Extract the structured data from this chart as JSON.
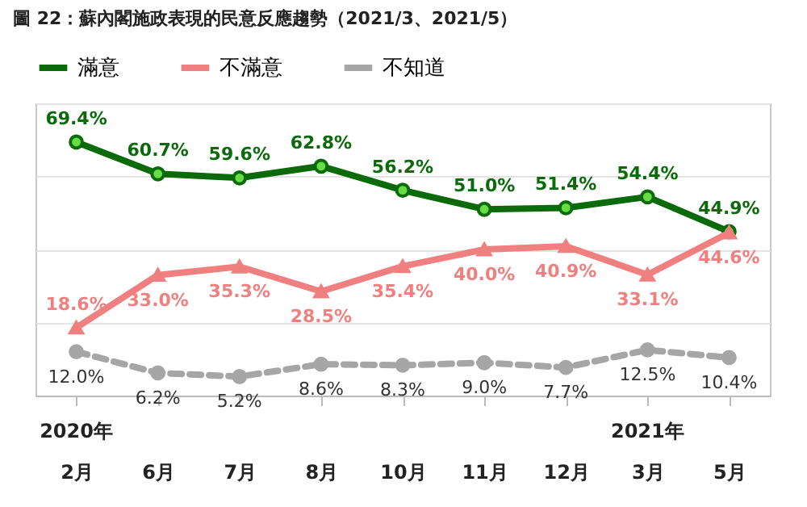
{
  "chart_data": {
    "type": "line",
    "title": "圖 22：蘇內閣施政表現的民意反應趨勢（2021/3、2021/5）",
    "categories": [
      "2月",
      "6月",
      "7月",
      "8月",
      "10月",
      "11月",
      "12月",
      "3月",
      "5月"
    ],
    "series": [
      {
        "name": "滿意",
        "color": "#0b6b0b",
        "marker": "circle",
        "line_style": "solid",
        "values": [
          69.4,
          60.7,
          59.6,
          62.8,
          56.2,
          51.0,
          51.4,
          54.4,
          44.9
        ],
        "value_labels": [
          "69.4%",
          "60.7%",
          "59.6%",
          "62.8%",
          "56.2%",
          "51.0%",
          "51.4%",
          "54.4%",
          "44.9%"
        ]
      },
      {
        "name": "不滿意",
        "color": "#f08080",
        "marker": "triangle",
        "line_style": "solid",
        "values": [
          18.6,
          33.0,
          35.3,
          28.5,
          35.4,
          40.0,
          40.9,
          33.1,
          44.6
        ],
        "value_labels": [
          "18.6%",
          "33.0%",
          "35.3%",
          "28.5%",
          "35.4%",
          "40.0%",
          "40.9%",
          "33.1%",
          "44.6%"
        ]
      },
      {
        "name": "不知道",
        "color": "#a6a6a6",
        "marker": "circle",
        "line_style": "dashed",
        "values": [
          12.0,
          6.2,
          5.2,
          8.6,
          8.3,
          9.0,
          7.7,
          12.5,
          10.4
        ],
        "value_labels": [
          "12.0%",
          "6.2%",
          "5.2%",
          "8.6%",
          "8.3%",
          "9.0%",
          "7.7%",
          "12.5%",
          "10.4%"
        ]
      }
    ],
    "ylim": [
      0,
      80
    ],
    "yticks": [
      {
        "value": 0,
        "label": null
      },
      {
        "value": 20,
        "label": null
      },
      {
        "value": 40,
        "label": null
      },
      {
        "value": 60,
        "label": null
      },
      {
        "value": 80,
        "label": null
      }
    ],
    "tick_labels": "x",
    "grid": "y",
    "legend": "top",
    "annotations": [
      "2020年",
      "2021年"
    ]
  }
}
